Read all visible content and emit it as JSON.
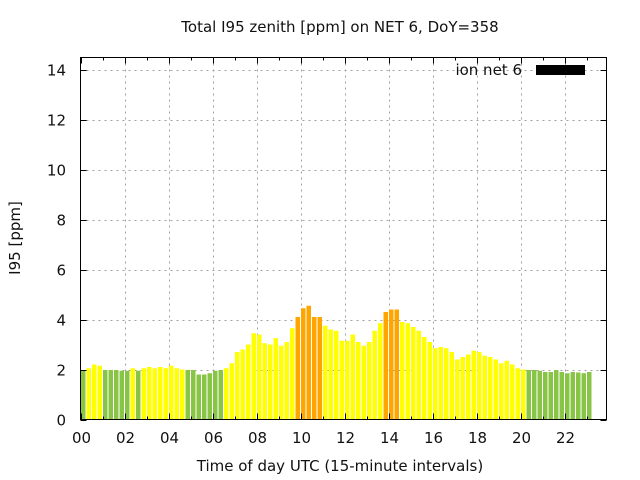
{
  "chart_data": {
    "type": "bar",
    "title": "Total I95 zenith [ppm] on NET 6, DoY=358",
    "xlabel": "Time of day UTC (15-minute intervals)",
    "ylabel": "I95 [ppm]",
    "ylim": [
      0,
      14.4
    ],
    "xlim": [
      0,
      23.25
    ],
    "grid": true,
    "legend": {
      "position": "top-right",
      "entries": [
        {
          "label": "ion net 6",
          "color": "#000000"
        }
      ]
    },
    "yticks": [
      0,
      2,
      4,
      6,
      8,
      10,
      12,
      14
    ],
    "ytick_labels": [
      "0",
      "2",
      "4",
      "6",
      "8",
      "10",
      "12",
      "14"
    ],
    "xticks": [
      0,
      2,
      4,
      6,
      8,
      10,
      12,
      14,
      16,
      18,
      20,
      22
    ],
    "xtick_labels": [
      "00",
      "02",
      "04",
      "06",
      "08",
      "10",
      "12",
      "14",
      "16",
      "18",
      "20",
      "22"
    ],
    "colors": {
      "low": "#88c446",
      "mid": "#ffff00",
      "high": "#ffa500"
    },
    "thresholds": {
      "mid": 2.0,
      "high": 4.0
    },
    "interval_hours": 0.25,
    "values": [
      1.95,
      2.05,
      2.2,
      2.15,
      1.98,
      1.98,
      1.98,
      1.95,
      1.95,
      2.05,
      1.95,
      2.05,
      2.1,
      2.05,
      2.1,
      2.05,
      2.15,
      2.05,
      2.0,
      1.98,
      1.98,
      1.8,
      1.8,
      1.85,
      1.95,
      1.98,
      2.05,
      2.25,
      2.7,
      2.8,
      3.0,
      3.45,
      3.4,
      3.05,
      3.0,
      3.25,
      2.95,
      3.1,
      3.65,
      4.1,
      4.45,
      4.55,
      4.1,
      4.1,
      3.75,
      3.6,
      3.55,
      3.15,
      3.15,
      3.4,
      3.1,
      2.95,
      3.1,
      3.55,
      3.85,
      4.3,
      4.4,
      4.4,
      3.9,
      3.85,
      3.7,
      3.55,
      3.3,
      3.1,
      2.85,
      2.9,
      2.85,
      2.7,
      2.4,
      2.5,
      2.6,
      2.75,
      2.7,
      2.55,
      2.5,
      2.4,
      2.25,
      2.35,
      2.2,
      2.05,
      2.0,
      1.98,
      1.98,
      1.95,
      1.9,
      1.9,
      1.98,
      1.9,
      1.85,
      1.9,
      1.88,
      1.85,
      1.9
    ]
  }
}
